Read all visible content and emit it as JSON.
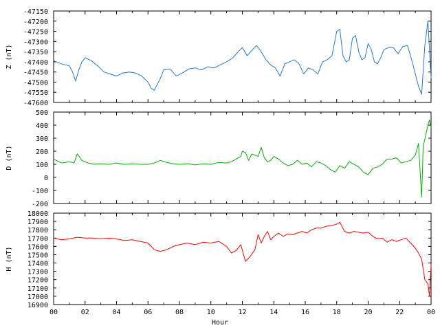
{
  "chart_data": [
    {
      "type": "line",
      "ylabel": "Z (nT)",
      "ylim": [
        -47600,
        -47150
      ],
      "yticks": [
        -47600,
        -47550,
        -47500,
        -47450,
        -47400,
        -47350,
        -47300,
        -47250,
        -47200,
        -47150
      ],
      "xlim": [
        0,
        24
      ],
      "color": "#1f77e0",
      "series": [
        {
          "x": [
            0,
            0.5,
            1,
            1.2,
            1.4,
            1.6,
            1.8,
            2,
            2.4,
            2.8,
            3.2,
            3.6,
            4,
            4.4,
            4.8,
            5.2,
            5.6,
            6,
            6.2,
            6.4,
            6.6,
            6.8,
            7,
            7.4,
            7.8,
            8.2,
            8.6,
            9,
            9.4,
            9.8,
            10.2,
            10.6,
            11,
            11.4,
            11.8,
            12,
            12.3,
            12.6,
            12.9,
            13.2,
            13.5,
            13.8,
            14.1,
            14.4,
            14.7,
            15,
            15.3,
            15.6,
            15.9,
            16.2,
            16.5,
            16.8,
            17.1,
            17.4,
            17.7,
            18,
            18.2,
            18.4,
            18.6,
            18.8,
            19,
            19.2,
            19.4,
            19.6,
            19.8,
            20,
            20.2,
            20.4,
            20.6,
            20.8,
            21,
            21.3,
            21.6,
            21.9,
            22.2,
            22.5,
            22.8,
            23,
            23.2,
            23.4,
            23.6,
            23.8,
            24
          ],
          "y": [
            -47395,
            -47410,
            -47420,
            -47450,
            -47495,
            -47440,
            -47400,
            -47380,
            -47395,
            -47420,
            -47450,
            -47460,
            -47470,
            -47455,
            -47450,
            -47455,
            -47470,
            -47500,
            -47530,
            -47540,
            -47510,
            -47480,
            -47440,
            -47435,
            -47470,
            -47455,
            -47435,
            -47430,
            -47440,
            -47425,
            -47430,
            -47415,
            -47400,
            -47380,
            -47345,
            -47330,
            -47370,
            -47345,
            -47320,
            -47350,
            -47390,
            -47415,
            -47430,
            -47470,
            -47410,
            -47400,
            -47390,
            -47410,
            -47460,
            -47430,
            -47440,
            -47460,
            -47400,
            -47390,
            -47370,
            -47250,
            -47240,
            -47370,
            -47400,
            -47390,
            -47285,
            -47270,
            -47350,
            -47390,
            -47380,
            -47310,
            -47340,
            -47400,
            -47410,
            -47380,
            -47340,
            -47330,
            -47330,
            -47360,
            -47325,
            -47320,
            -47400,
            -47460,
            -47520,
            -47560,
            -47320,
            -47200,
            -47480
          ]
        }
      ]
    },
    {
      "type": "line",
      "ylabel": "D (nT)",
      "ylim": [
        -200,
        500
      ],
      "yticks": [
        -200,
        -100,
        0,
        100,
        200,
        300,
        400,
        500
      ],
      "xlim": [
        0,
        24
      ],
      "color": "#00b000",
      "series": [
        {
          "x": [
            0,
            0.5,
            1,
            1.3,
            1.5,
            1.8,
            2.2,
            2.6,
            3,
            3.5,
            4,
            4.5,
            5,
            5.5,
            6,
            6.4,
            6.8,
            7.2,
            7.6,
            8,
            8.5,
            9,
            9.5,
            10,
            10.5,
            11,
            11.3,
            11.6,
            11.9,
            12,
            12.2,
            12.4,
            12.6,
            12.8,
            13,
            13.2,
            13.4,
            13.6,
            13.8,
            14,
            14.3,
            14.6,
            14.9,
            15.2,
            15.5,
            15.8,
            16.1,
            16.4,
            16.7,
            17,
            17.3,
            17.6,
            17.9,
            18.2,
            18.5,
            18.8,
            19.1,
            19.4,
            19.7,
            20,
            20.3,
            20.6,
            20.9,
            21.2,
            21.5,
            21.8,
            22.1,
            22.4,
            22.7,
            23,
            23.2,
            23.4,
            23.5,
            23.6,
            23.8,
            23.9,
            24
          ],
          "y": [
            140,
            110,
            120,
            110,
            180,
            130,
            110,
            100,
            105,
            100,
            110,
            100,
            105,
            100,
            100,
            110,
            130,
            115,
            105,
            100,
            105,
            95,
            105,
            100,
            115,
            110,
            120,
            140,
            160,
            200,
            190,
            130,
            180,
            170,
            160,
            230,
            150,
            120,
            130,
            160,
            140,
            110,
            90,
            100,
            130,
            100,
            110,
            80,
            120,
            110,
            90,
            60,
            40,
            90,
            70,
            120,
            100,
            80,
            40,
            20,
            70,
            80,
            100,
            140,
            140,
            150,
            110,
            120,
            130,
            170,
            260,
            -150,
            240,
            290,
            400,
            440,
            380
          ]
        }
      ]
    },
    {
      "type": "line",
      "ylabel": "H (nT)",
      "xlabel": "Hour",
      "ylim": [
        16900,
        18000
      ],
      "yticks": [
        16900,
        17000,
        17100,
        17200,
        17300,
        17400,
        17500,
        17600,
        17700,
        17800,
        17900,
        18000
      ],
      "xlim": [
        0,
        24
      ],
      "xticks": [
        "00",
        "02",
        "04",
        "06",
        "08",
        "10",
        "12",
        "14",
        "16",
        "18",
        "20",
        "22",
        "00"
      ],
      "color": "#ff0000",
      "series": [
        {
          "x": [
            0,
            0.5,
            1,
            1.5,
            2,
            2.5,
            3,
            3.5,
            4,
            4.5,
            5,
            5.5,
            6,
            6.4,
            6.8,
            7.2,
            7.6,
            8,
            8.5,
            9,
            9.5,
            10,
            10.5,
            11,
            11.3,
            11.6,
            11.9,
            12.2,
            12.5,
            12.8,
            13,
            13.2,
            13.4,
            13.6,
            13.8,
            14,
            14.3,
            14.6,
            14.9,
            15.2,
            15.5,
            15.8,
            16.1,
            16.4,
            16.7,
            17,
            17.3,
            17.6,
            17.9,
            18.2,
            18.5,
            18.8,
            19.1,
            19.4,
            19.7,
            20,
            20.3,
            20.6,
            20.9,
            21.2,
            21.5,
            21.8,
            22.1,
            22.4,
            22.7,
            23,
            23.2,
            23.4,
            23.6,
            23.8,
            23.9,
            24
          ],
          "y": [
            17700,
            17680,
            17690,
            17710,
            17700,
            17700,
            17690,
            17700,
            17690,
            17670,
            17680,
            17660,
            17640,
            17560,
            17540,
            17560,
            17600,
            17620,
            17640,
            17620,
            17650,
            17640,
            17660,
            17600,
            17520,
            17550,
            17620,
            17420,
            17480,
            17560,
            17740,
            17640,
            17720,
            17780,
            17680,
            17720,
            17760,
            17720,
            17750,
            17740,
            17760,
            17780,
            17760,
            17800,
            17820,
            17820,
            17840,
            17850,
            17860,
            17890,
            17780,
            17760,
            17780,
            17770,
            17760,
            17770,
            17720,
            17690,
            17700,
            17650,
            17680,
            17660,
            17680,
            17700,
            17640,
            17580,
            17520,
            17450,
            17200,
            17150,
            17000,
            17380
          ]
        }
      ]
    }
  ]
}
